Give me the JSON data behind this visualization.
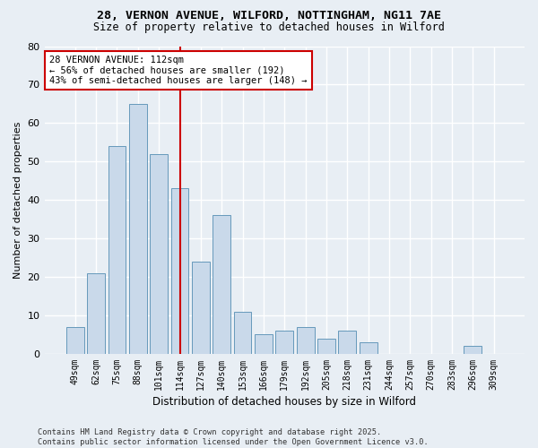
{
  "title1": "28, VERNON AVENUE, WILFORD, NOTTINGHAM, NG11 7AE",
  "title2": "Size of property relative to detached houses in Wilford",
  "xlabel": "Distribution of detached houses by size in Wilford",
  "ylabel": "Number of detached properties",
  "categories": [
    "49sqm",
    "62sqm",
    "75sqm",
    "88sqm",
    "101sqm",
    "114sqm",
    "127sqm",
    "140sqm",
    "153sqm",
    "166sqm",
    "179sqm",
    "192sqm",
    "205sqm",
    "218sqm",
    "231sqm",
    "244sqm",
    "257sqm",
    "270sqm",
    "283sqm",
    "296sqm",
    "309sqm"
  ],
  "values": [
    7,
    21,
    54,
    65,
    52,
    43,
    24,
    36,
    11,
    5,
    6,
    7,
    4,
    6,
    3,
    0,
    0,
    0,
    0,
    2,
    0
  ],
  "bar_color": "#c9d9ea",
  "bar_edge_color": "#6699bb",
  "vline_index": 5,
  "vline_color": "#cc0000",
  "annotation_text": "28 VERNON AVENUE: 112sqm\n← 56% of detached houses are smaller (192)\n43% of semi-detached houses are larger (148) →",
  "annotation_box_color": "#ffffff",
  "annotation_box_edge_color": "#cc0000",
  "ylim": [
    0,
    80
  ],
  "yticks": [
    0,
    10,
    20,
    30,
    40,
    50,
    60,
    70,
    80
  ],
  "footer": "Contains HM Land Registry data © Crown copyright and database right 2025.\nContains public sector information licensed under the Open Government Licence v3.0.",
  "bg_color": "#e8eef4",
  "grid_color": "#ffffff",
  "title_fontsize": 9.5,
  "subtitle_fontsize": 8.5
}
